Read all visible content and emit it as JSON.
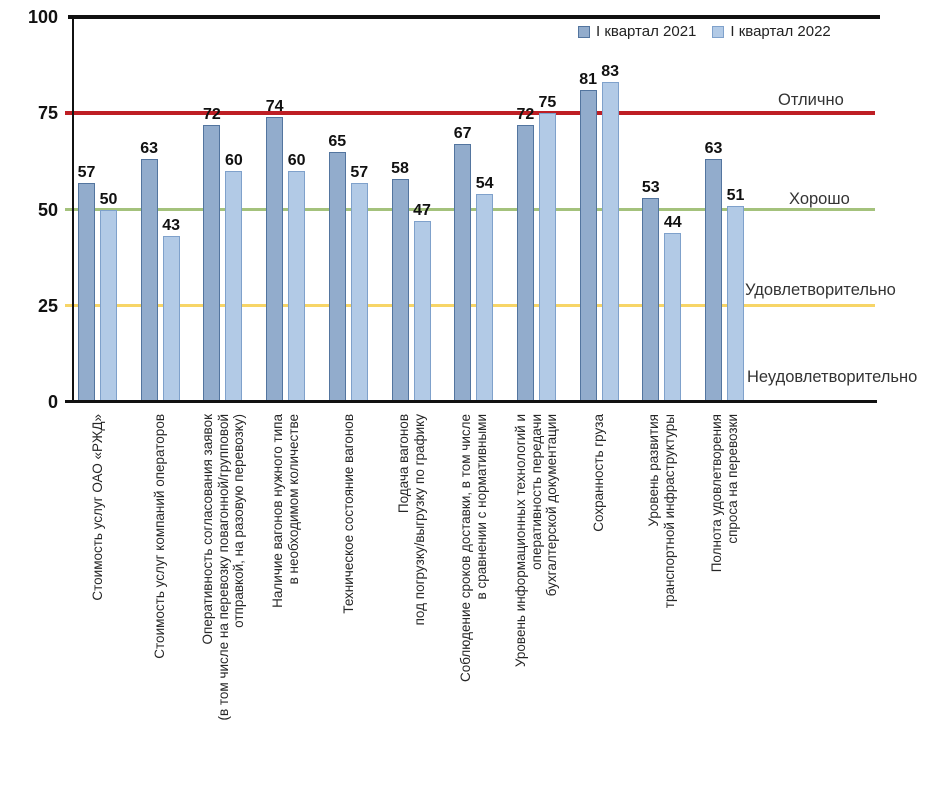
{
  "chart_data": {
    "type": "bar",
    "title": "",
    "xlabel": "",
    "ylabel": "",
    "ylim": [
      0,
      100
    ],
    "yticks": [
      100,
      75,
      50,
      25,
      0
    ],
    "grid": false,
    "legend_position": "top-right",
    "categories": [
      "Стоимость услуг ОАО «РЖД»",
      "Стоимость услуг компаний операторов",
      "Оперативность согласования заявок\n(в том числе на перевозку повагонной/групповой\nотправкой, на разовую перевозку)",
      "Наличие вагонов нужного типа\nв необходимом количестве",
      "Техническое состояние вагонов",
      "Подача вагонов\nпод погрузку/выгрузку по графику",
      "Соблюдение сроков доставки, в том числе\nв сравнении с нормативными",
      "Уровень информационных технологий и\nоперативность передачи\nбухгалтерской документации",
      "Сохранность груза",
      "Уровень развития\nтранспортной инфраструктуры",
      "Полнота удовлетворения\nспроса на перевозки"
    ],
    "series": [
      {
        "name": "I квартал 2021",
        "fill_color": "#92ACCC",
        "border_color": "#53759F",
        "values": [
          57,
          63,
          72,
          74,
          65,
          58,
          67,
          72,
          81,
          53,
          63
        ]
      },
      {
        "name": "I квартал 2022",
        "fill_color": "#B2CAE6",
        "border_color": "#7FA1CB",
        "values": [
          50,
          43,
          60,
          60,
          57,
          47,
          54,
          75,
          83,
          44,
          51
        ]
      }
    ],
    "reference_lines": [
      {
        "label": "Отлично",
        "value": 75,
        "color": "#BE1E24",
        "thickness": 4
      },
      {
        "label": "Хорошо",
        "value": 50,
        "color": "#A4C27C",
        "thickness": 3
      },
      {
        "label": "Удовлетворительно",
        "value": 25,
        "color": "#F7D567",
        "thickness": 3
      },
      {
        "label": "Неудовлетворительно",
        "value": 0,
        "color": "#111111",
        "thickness": 0
      }
    ]
  }
}
